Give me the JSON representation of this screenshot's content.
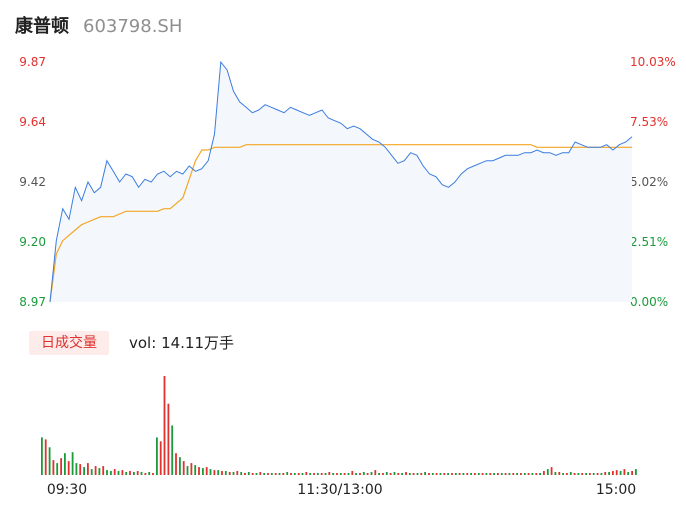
{
  "stock": {
    "name": "康普顿",
    "code": "603798.SH"
  },
  "volume_panel": {
    "tab_label": "日成交量",
    "vol_prefix": "vol:",
    "vol_value": "14.11万手"
  },
  "colors": {
    "price_line": "#3a7de0",
    "avg_line": "#f5a623",
    "area_fill": "#f4f7fc",
    "up": "#e0312f",
    "down": "#1a9a3a",
    "axis_text": "#555555"
  },
  "chart_data": [
    {
      "type": "line",
      "title": "",
      "y_price_ticks": [
        "9.87",
        "9.64",
        "9.42",
        "9.20",
        "8.97"
      ],
      "y_pct_ticks": [
        "10.03%",
        "7.53%",
        "5.02%",
        "2.51%",
        "0.00%"
      ],
      "ylim": [
        8.97,
        9.87
      ],
      "x_ticks": [
        "09:30",
        "11:30/13:00",
        "15:00"
      ],
      "price": [
        8.97,
        9.2,
        9.32,
        9.28,
        9.4,
        9.35,
        9.42,
        9.38,
        9.4,
        9.5,
        9.46,
        9.42,
        9.45,
        9.44,
        9.4,
        9.43,
        9.42,
        9.45,
        9.46,
        9.44,
        9.46,
        9.45,
        9.48,
        9.46,
        9.47,
        9.5,
        9.6,
        9.87,
        9.84,
        9.76,
        9.72,
        9.7,
        9.68,
        9.69,
        9.71,
        9.7,
        9.69,
        9.68,
        9.7,
        9.69,
        9.68,
        9.67,
        9.68,
        9.69,
        9.66,
        9.65,
        9.64,
        9.62,
        9.63,
        9.62,
        9.6,
        9.58,
        9.57,
        9.55,
        9.52,
        9.49,
        9.5,
        9.53,
        9.52,
        9.48,
        9.45,
        9.44,
        9.41,
        9.4,
        9.42,
        9.45,
        9.47,
        9.48,
        9.49,
        9.5,
        9.5,
        9.51,
        9.52,
        9.52,
        9.52,
        9.53,
        9.53,
        9.54,
        9.53,
        9.53,
        9.52,
        9.53,
        9.53,
        9.57,
        9.56,
        9.55,
        9.55,
        9.55,
        9.56,
        9.54,
        9.56,
        9.57,
        9.59
      ],
      "avg": [
        8.97,
        9.15,
        9.2,
        9.22,
        9.24,
        9.26,
        9.27,
        9.28,
        9.29,
        9.29,
        9.29,
        9.3,
        9.31,
        9.31,
        9.31,
        9.31,
        9.31,
        9.31,
        9.32,
        9.32,
        9.34,
        9.36,
        9.43,
        9.5,
        9.54,
        9.54,
        9.55,
        9.55,
        9.55,
        9.55,
        9.55,
        9.56,
        9.56,
        9.56,
        9.56,
        9.56,
        9.56,
        9.56,
        9.56,
        9.56,
        9.56,
        9.56,
        9.56,
        9.56,
        9.56,
        9.56,
        9.56,
        9.56,
        9.56,
        9.56,
        9.56,
        9.56,
        9.56,
        9.56,
        9.56,
        9.56,
        9.56,
        9.56,
        9.56,
        9.56,
        9.56,
        9.56,
        9.56,
        9.56,
        9.56,
        9.56,
        9.56,
        9.56,
        9.56,
        9.56,
        9.56,
        9.56,
        9.56,
        9.56,
        9.56,
        9.56,
        9.56,
        9.55,
        9.55,
        9.55,
        9.55,
        9.55,
        9.55,
        9.55,
        9.55,
        9.55,
        9.55,
        9.55,
        9.55,
        9.55,
        9.55,
        9.55,
        9.55
      ]
    },
    {
      "type": "bar",
      "title": "",
      "ylim": [
        0,
        100
      ],
      "values": [
        38,
        36,
        28,
        15,
        12,
        17,
        22,
        14,
        23,
        12,
        11,
        8,
        12,
        6,
        9,
        7,
        9,
        5,
        4,
        6,
        4,
        5,
        3,
        4,
        3,
        4,
        3,
        2,
        3,
        2,
        38,
        34,
        100,
        72,
        50,
        22,
        18,
        14,
        9,
        12,
        10,
        8,
        7,
        8,
        6,
        5,
        5,
        4,
        4,
        3,
        3,
        4,
        3,
        2,
        3,
        2,
        2,
        3,
        2,
        2,
        2,
        2,
        2,
        2,
        3,
        2,
        2,
        2,
        2,
        3,
        2,
        2,
        2,
        2,
        2,
        3,
        2,
        2,
        2,
        2,
        2,
        4,
        2,
        2,
        3,
        2,
        3,
        5,
        2,
        2,
        3,
        2,
        3,
        2,
        2,
        3,
        2,
        2,
        2,
        2,
        3,
        2,
        2,
        2,
        2,
        2,
        2,
        2,
        2,
        2,
        2,
        2,
        2,
        2,
        2,
        2,
        2,
        2,
        2,
        2,
        2,
        2,
        2,
        2,
        2,
        2,
        2,
        2,
        2,
        2,
        2,
        4,
        6,
        8,
        3,
        3,
        2,
        2,
        3,
        2,
        2,
        2,
        2,
        2,
        2,
        2,
        2,
        3,
        3,
        4,
        5,
        4,
        6,
        3,
        4,
        6
      ],
      "directions": [
        "d",
        "u",
        "d",
        "u",
        "d",
        "u",
        "d",
        "u",
        "d",
        "d",
        "u",
        "d",
        "u",
        "d",
        "u",
        "d",
        "u",
        "d",
        "d",
        "u",
        "d",
        "u",
        "d",
        "u",
        "d",
        "u",
        "d",
        "u",
        "d",
        "u",
        "d",
        "u",
        "u",
        "u",
        "d",
        "u",
        "d",
        "u",
        "d",
        "u",
        "d",
        "u",
        "d",
        "u",
        "d",
        "u",
        "d",
        "u",
        "d",
        "u",
        "d",
        "u",
        "d",
        "u",
        "d",
        "u",
        "d",
        "u",
        "d",
        "u",
        "d",
        "u",
        "d",
        "u",
        "d",
        "u",
        "d",
        "u",
        "d",
        "u",
        "d",
        "u",
        "d",
        "u",
        "d",
        "u",
        "d",
        "u",
        "d",
        "u",
        "d",
        "u",
        "d",
        "u",
        "d",
        "u",
        "d",
        "u",
        "d",
        "u",
        "d",
        "u",
        "d",
        "u",
        "d",
        "u",
        "d",
        "u",
        "d",
        "u",
        "d",
        "u",
        "d",
        "u",
        "d",
        "u",
        "d",
        "u",
        "d",
        "u",
        "d",
        "u",
        "d",
        "u",
        "d",
        "u",
        "d",
        "u",
        "d",
        "u",
        "d",
        "u",
        "d",
        "u",
        "d",
        "u",
        "d",
        "u",
        "d",
        "u",
        "d",
        "u",
        "d",
        "u",
        "d",
        "u",
        "d",
        "u",
        "d",
        "u",
        "d",
        "u",
        "d",
        "u",
        "d",
        "u",
        "d",
        "u",
        "d",
        "u",
        "u",
        "d",
        "u",
        "d",
        "u",
        "d",
        "u"
      ]
    }
  ]
}
